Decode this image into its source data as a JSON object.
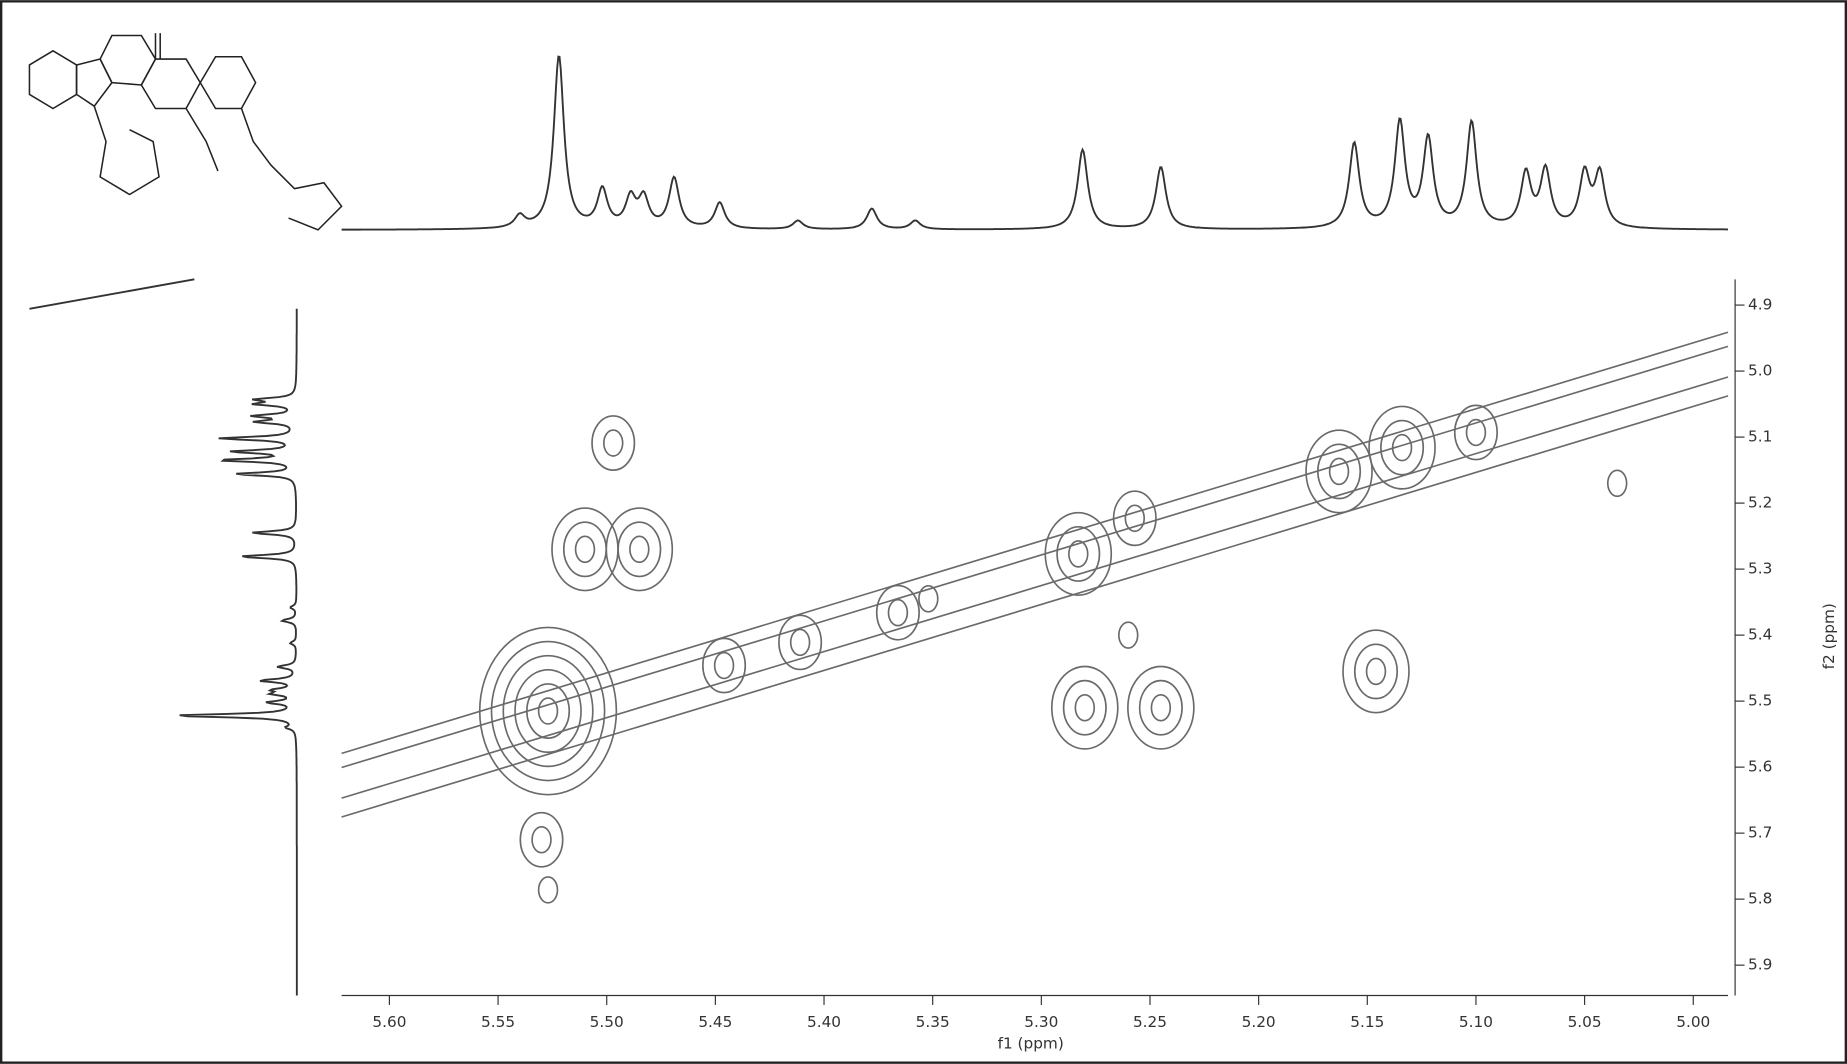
{
  "chart_data": {
    "type": "nmr2d",
    "x_label": "f1 (ppm)",
    "y_label": "f2 (ppm)",
    "xlim": [
      5.622,
      4.984
    ],
    "ylim": [
      4.861,
      5.946
    ],
    "xticks": [
      {
        "value": 5.6,
        "label": "5.60"
      },
      5.55,
      {
        "value": 5.5,
        "label": "5.50"
      },
      5.45,
      {
        "value": 5.4,
        "label": "5.40"
      },
      5.35,
      {
        "value": 5.3,
        "label": "5.30"
      },
      5.25,
      {
        "value": 5.2,
        "label": "5.20"
      },
      5.15,
      {
        "value": 5.1,
        "label": "5.10"
      },
      5.05,
      {
        "value": 5.0,
        "label": "5.00"
      }
    ],
    "yticks": [
      4.9,
      {
        "value": 5.0,
        "label": "5.0"
      },
      5.1,
      5.2,
      5.3,
      5.4,
      5.5,
      5.6,
      5.7,
      5.8,
      5.9
    ],
    "projection_peaks": {
      "x": [
        5.54,
        5.522,
        5.502,
        5.489,
        5.483,
        5.469,
        5.448,
        5.412,
        5.378,
        5.358,
        5.281,
        5.245,
        5.156,
        5.135,
        5.122,
        5.102,
        5.077,
        5.068,
        5.05,
        5.043
      ],
      "values": [
        7,
        100,
        22,
        17,
        17,
        29,
        15,
        5,
        12,
        5,
        46,
        36,
        49,
        61,
        51,
        61,
        31,
        33,
        31,
        31
      ]
    },
    "cross_peaks": {
      "x": [
        5.527,
        5.51,
        5.485,
        5.497,
        5.53,
        5.527,
        5.446,
        5.411,
        5.366,
        5.352,
        5.283,
        5.257,
        5.28,
        5.245,
        5.26,
        5.163,
        5.134,
        5.1,
        5.146,
        5.035
      ],
      "y": [
        5.515,
        5.27,
        5.27,
        5.109,
        5.71,
        5.786,
        5.446,
        5.411,
        5.366,
        5.345,
        5.277,
        5.223,
        5.51,
        5.51,
        5.4,
        5.152,
        5.116,
        5.093,
        5.455,
        5.17
      ],
      "levels": [
        6,
        3,
        3,
        2,
        2,
        1,
        2,
        2,
        2,
        1,
        3,
        2,
        3,
        3,
        1,
        3,
        3,
        2,
        3,
        1
      ]
    }
  }
}
